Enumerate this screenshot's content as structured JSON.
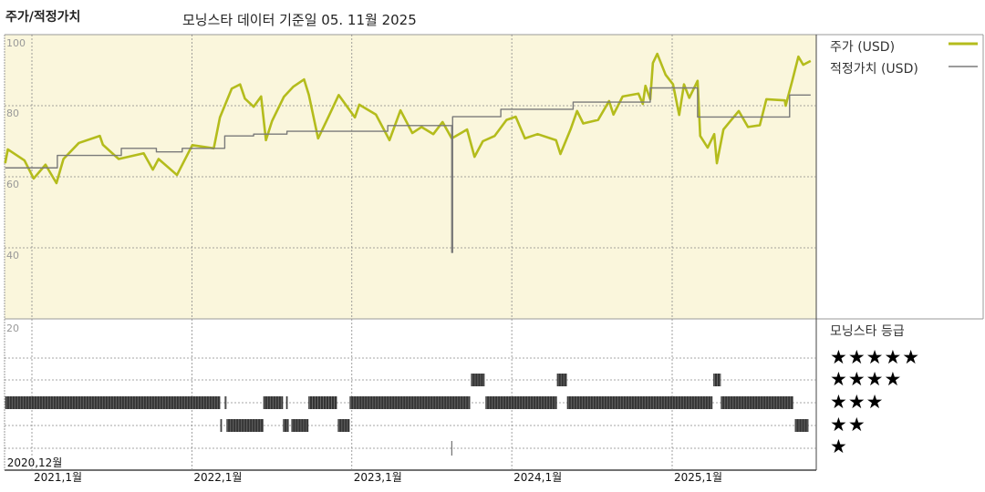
{
  "header": {
    "title": "주가/적정가치",
    "subtitle": "모닝스타 데이터 기준일 05. 11월 2025"
  },
  "legend": {
    "price_label": "주가 (USD)",
    "fair_value_label": "적정가치 (USD)",
    "rating_title": "모닝스타 등급",
    "rating_rows": [
      "★★★★★",
      "★★★★",
      "★★★",
      "★★",
      "★"
    ]
  },
  "colors": {
    "price": "#b4bc1c",
    "fair_value": "#7a7a7a",
    "plot_bg": "#faf6dc",
    "rating_bar": "#333333"
  },
  "chart_data": {
    "type": "line",
    "title": "주가/적정가치",
    "x_range": [
      "2020-11-01",
      "2025-11-25"
    ],
    "x_ticks": [
      {
        "date": "2020-11-01",
        "label": "2020,12월"
      },
      {
        "date": "2021-01-01",
        "label": "2021,1월"
      },
      {
        "date": "2022-01-01",
        "label": "2022,1월"
      },
      {
        "date": "2023-01-01",
        "label": "2023,1월"
      },
      {
        "date": "2024-01-01",
        "label": "2024,1월"
      },
      {
        "date": "2025-01-01",
        "label": "2025,1월"
      }
    ],
    "y_range": [
      20,
      100
    ],
    "y_ticks": [
      100,
      80,
      60,
      40,
      20
    ],
    "grid": true,
    "legend_position": "right",
    "series": [
      {
        "name": "주가 (USD)",
        "points": [
          [
            "2020-11-01",
            63.8
          ],
          [
            "2020-11-07",
            67.7
          ],
          [
            "2020-12-15",
            64.6
          ],
          [
            "2021-01-05",
            59.5
          ],
          [
            "2021-02-01",
            63.4
          ],
          [
            "2021-02-26",
            58.2
          ],
          [
            "2021-03-14",
            65
          ],
          [
            "2021-04-18",
            69.5
          ],
          [
            "2021-06-05",
            71.5
          ],
          [
            "2021-06-12",
            69
          ],
          [
            "2021-07-18",
            65
          ],
          [
            "2021-09-13",
            66.6
          ],
          [
            "2021-10-04",
            62
          ],
          [
            "2021-10-17",
            65
          ],
          [
            "2021-11-28",
            60.5
          ],
          [
            "2022-01-02",
            68.9
          ],
          [
            "2022-02-20",
            68
          ],
          [
            "2022-03-06",
            76.7
          ],
          [
            "2022-04-02",
            84.8
          ],
          [
            "2022-04-21",
            86
          ],
          [
            "2022-05-02",
            82
          ],
          [
            "2022-05-22",
            79.7
          ],
          [
            "2022-06-08",
            82.6
          ],
          [
            "2022-06-19",
            70.3
          ],
          [
            "2022-07-03",
            75.7
          ],
          [
            "2022-07-30",
            82.5
          ],
          [
            "2022-08-20",
            85.3
          ],
          [
            "2022-09-14",
            87.4
          ],
          [
            "2022-09-25",
            83
          ],
          [
            "2022-10-16",
            70.8
          ],
          [
            "2022-11-05",
            75.9
          ],
          [
            "2022-12-02",
            83
          ],
          [
            "2023-01-08",
            76.7
          ],
          [
            "2023-01-18",
            80.3
          ],
          [
            "2023-02-25",
            77.5
          ],
          [
            "2023-03-28",
            70.3
          ],
          [
            "2023-04-22",
            78.7
          ],
          [
            "2023-05-19",
            72.3
          ],
          [
            "2023-06-09",
            74
          ],
          [
            "2023-07-06",
            72
          ],
          [
            "2023-07-27",
            75.4
          ],
          [
            "2023-08-17",
            70.8
          ],
          [
            "2023-09-21",
            73.3
          ],
          [
            "2023-10-08",
            65.6
          ],
          [
            "2023-10-27",
            70
          ],
          [
            "2023-11-23",
            71.5
          ],
          [
            "2023-12-20",
            76
          ],
          [
            "2024-01-10",
            76.9
          ],
          [
            "2024-01-31",
            70.8
          ],
          [
            "2024-02-29",
            72
          ],
          [
            "2024-04-11",
            70.3
          ],
          [
            "2024-04-21",
            66.4
          ],
          [
            "2024-05-14",
            73.3
          ],
          [
            "2024-05-29",
            78.5
          ],
          [
            "2024-06-12",
            75
          ],
          [
            "2024-07-16",
            76
          ],
          [
            "2024-08-10",
            81.3
          ],
          [
            "2024-08-20",
            77.5
          ],
          [
            "2024-09-10",
            82.6
          ],
          [
            "2024-10-16",
            83.4
          ],
          [
            "2024-10-26",
            80.5
          ],
          [
            "2024-11-01",
            85.6
          ],
          [
            "2024-11-12",
            81.8
          ],
          [
            "2024-11-18",
            92
          ],
          [
            "2024-11-28",
            94.6
          ],
          [
            "2024-12-17",
            88.7
          ],
          [
            "2025-01-03",
            86
          ],
          [
            "2025-01-17",
            77.4
          ],
          [
            "2025-01-28",
            86
          ],
          [
            "2025-02-09",
            82.2
          ],
          [
            "2025-02-28",
            87
          ],
          [
            "2025-03-06",
            71.5
          ],
          [
            "2025-03-23",
            68.2
          ],
          [
            "2025-04-07",
            72
          ],
          [
            "2025-04-13",
            63.8
          ],
          [
            "2025-04-28",
            73.3
          ],
          [
            "2025-05-12",
            75.4
          ],
          [
            "2025-06-02",
            78.5
          ],
          [
            "2025-06-23",
            74
          ],
          [
            "2025-07-20",
            74.5
          ],
          [
            "2025-08-04",
            81.8
          ],
          [
            "2025-09-15",
            81.5
          ],
          [
            "2025-09-17",
            80
          ],
          [
            "2025-10-02",
            87
          ],
          [
            "2025-10-16",
            93.8
          ],
          [
            "2025-10-27",
            91.5
          ],
          [
            "2025-11-13",
            92.6
          ]
        ]
      },
      {
        "name": "적정가치 (USD)",
        "step": true,
        "points": [
          [
            "2020-11-01",
            62.5
          ],
          [
            "2021-02-28",
            66
          ],
          [
            "2021-07-24",
            68
          ],
          [
            "2021-10-12",
            67
          ],
          [
            "2021-12-10",
            68
          ],
          [
            "2022-03-17",
            71.5
          ],
          [
            "2022-05-22",
            72
          ],
          [
            "2022-08-06",
            72.8
          ],
          [
            "2023-03-24",
            74.4
          ],
          [
            "2023-08-17",
            38.7
          ],
          [
            "2023-08-19",
            76.9
          ],
          [
            "2023-12-07",
            79
          ],
          [
            "2024-05-20",
            81
          ],
          [
            "2024-11-12",
            85
          ],
          [
            "2025-02-28",
            76.8
          ],
          [
            "2025-09-26",
            83
          ],
          [
            "2025-11-13",
            83
          ]
        ]
      }
    ],
    "rating_panel": {
      "title": "모닝스타 등급",
      "y_tick": 20,
      "segments": [
        {
          "stars": 3,
          "from": "2020-11-01",
          "to": "2022-03-07"
        },
        {
          "stars": 2,
          "from": "2022-03-07",
          "to": "2022-03-11"
        },
        {
          "stars": 3,
          "from": "2022-03-17",
          "to": "2022-03-21"
        },
        {
          "stars": 2,
          "from": "2022-03-21",
          "to": "2022-06-13"
        },
        {
          "stars": 3,
          "from": "2022-06-13",
          "to": "2022-07-28"
        },
        {
          "stars": 2,
          "from": "2022-07-28",
          "to": "2022-08-10"
        },
        {
          "stars": 3,
          "from": "2022-08-04",
          "to": "2022-08-08"
        },
        {
          "stars": 2,
          "from": "2022-08-16",
          "to": "2022-09-24"
        },
        {
          "stars": 3,
          "from": "2022-09-24",
          "to": "2022-11-28"
        },
        {
          "stars": 2,
          "from": "2022-11-30",
          "to": "2022-12-27"
        },
        {
          "stars": 3,
          "from": "2022-12-27",
          "to": "2023-09-28"
        },
        {
          "stars": 1,
          "from": "2023-08-17",
          "to": "2023-08-18"
        },
        {
          "stars": 4,
          "from": "2023-09-30",
          "to": "2023-10-31"
        },
        {
          "stars": 3,
          "from": "2023-11-02",
          "to": "2024-04-13"
        },
        {
          "stars": 4,
          "from": "2024-04-13",
          "to": "2024-05-06"
        },
        {
          "stars": 3,
          "from": "2024-05-06",
          "to": "2025-04-03"
        },
        {
          "stars": 4,
          "from": "2025-04-05",
          "to": "2025-04-22"
        },
        {
          "stars": 3,
          "from": "2025-04-22",
          "to": "2025-10-04"
        },
        {
          "stars": 2,
          "from": "2025-10-08",
          "to": "2025-11-08"
        }
      ]
    }
  }
}
